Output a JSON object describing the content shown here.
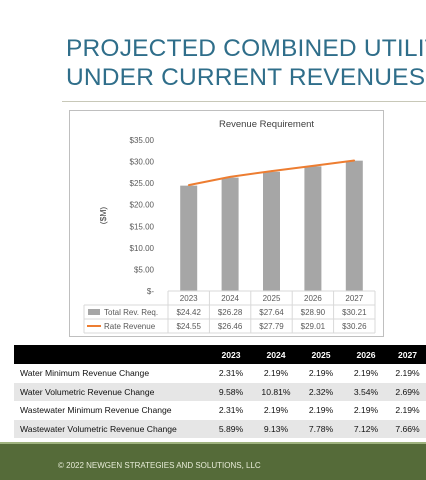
{
  "slide": {
    "title_line1": "PROJECTED COMBINED UTILITY",
    "title_line2": "UNDER CURRENT REVENUES",
    "footer": "© 2022 NEWGEN STRATEGIES AND SOLUTIONS, LLC"
  },
  "chart_data": {
    "type": "bar",
    "title": "Revenue Requirement",
    "ylabel": "($M)",
    "xlabel": "",
    "categories": [
      "2023",
      "2024",
      "2025",
      "2026",
      "2027"
    ],
    "ylim": [
      0,
      35
    ],
    "yticks": [
      35,
      30,
      25,
      20,
      15,
      10,
      5,
      0
    ],
    "ytick_labels": [
      "$35.00",
      "$30.00",
      "$25.00",
      "$20.00",
      "$15.00",
      "$10.00",
      "$5.00",
      "$-"
    ],
    "grid": false,
    "series": [
      {
        "name": "Total Rev. Req.",
        "kind": "bar",
        "color": "#a6a6a6",
        "values": [
          24.42,
          26.28,
          27.64,
          28.9,
          30.21
        ],
        "labels": [
          "$24.42",
          "$26.28",
          "$27.64",
          "$28.90",
          "$30.21"
        ]
      },
      {
        "name": "Rate Revenue",
        "kind": "line",
        "color": "#ed7d31",
        "values": [
          24.55,
          26.46,
          27.79,
          29.01,
          30.26
        ],
        "labels": [
          "$24.55",
          "$26.46",
          "$27.79",
          "$29.01",
          "$30.26"
        ]
      }
    ],
    "legend": "data-table-below"
  },
  "table": {
    "columns": [
      "",
      "2023",
      "2024",
      "2025",
      "2026",
      "2027"
    ],
    "rows": [
      {
        "label": "Water Minimum Revenue Change",
        "values": [
          "2.31%",
          "2.19%",
          "2.19%",
          "2.19%",
          "2.19%"
        ]
      },
      {
        "label": "Water Volumetric Revenue Change",
        "values": [
          "9.58%",
          "10.81%",
          "2.32%",
          "3.54%",
          "2.69%"
        ]
      },
      {
        "label": "Wastewater Minimum Revenue Change",
        "values": [
          "2.31%",
          "2.19%",
          "2.19%",
          "2.19%",
          "2.19%"
        ]
      },
      {
        "label": "Wastewater Volumetric Revenue Change",
        "values": [
          "5.89%",
          "9.13%",
          "7.78%",
          "7.12%",
          "7.66%"
        ]
      }
    ]
  }
}
